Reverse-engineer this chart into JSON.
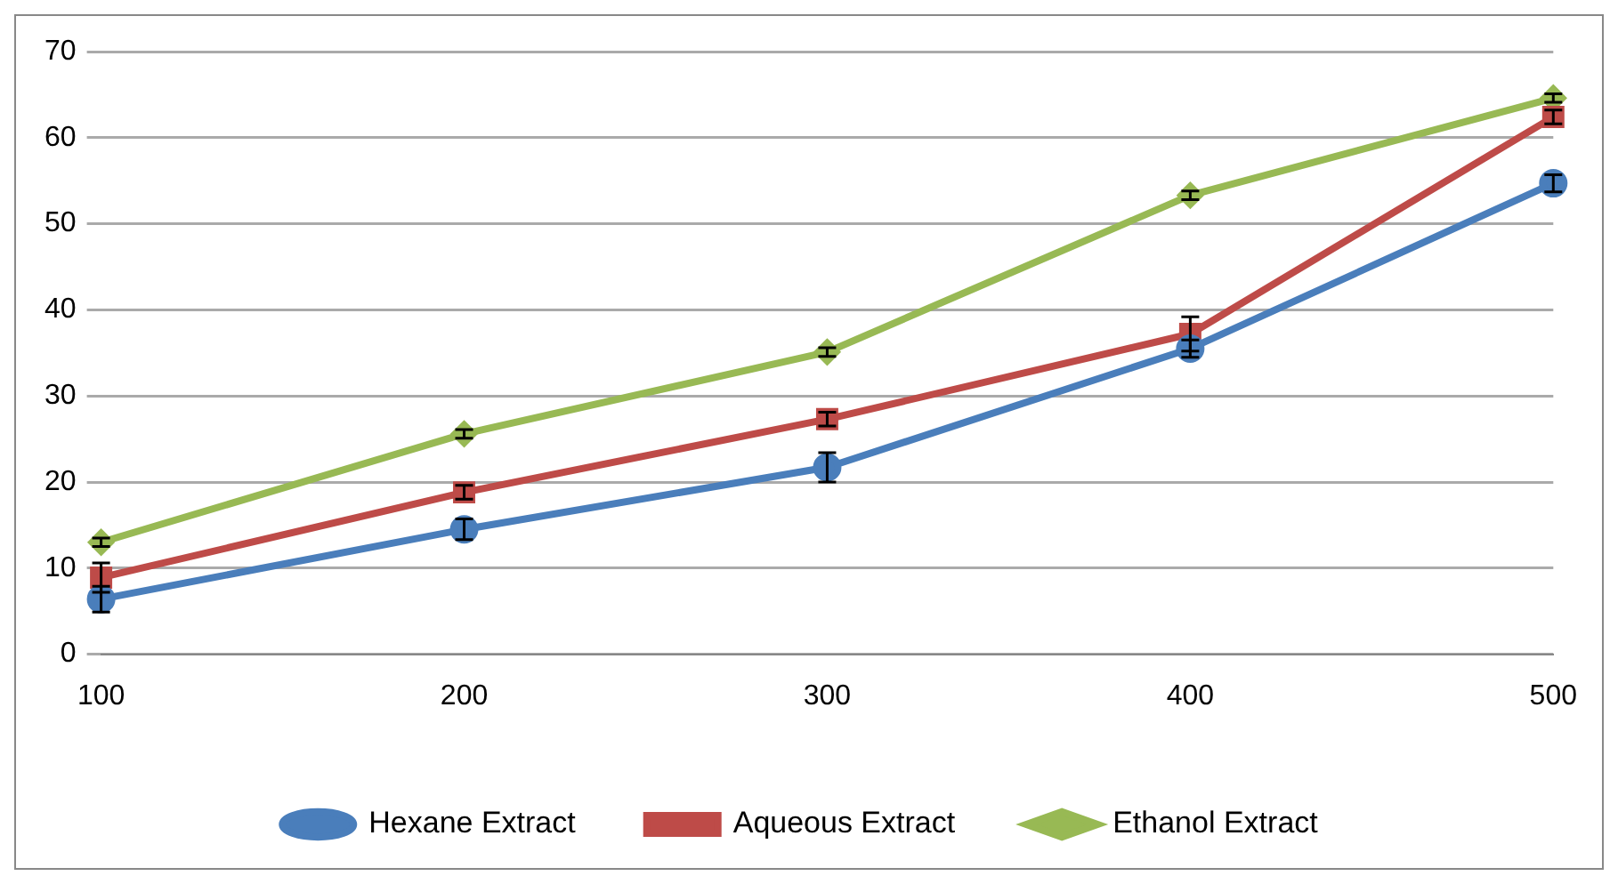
{
  "chart_data": {
    "type": "line",
    "categories": [
      "100",
      "200",
      "300",
      "400",
      "500"
    ],
    "ylim": [
      0,
      70
    ],
    "yticks": [
      0,
      10,
      20,
      30,
      40,
      50,
      60,
      70
    ],
    "grid": "y",
    "legend": "bottom",
    "series": [
      {
        "name": "Hexane Extract",
        "color": "#4a7ebb",
        "marker": "circle",
        "values": [
          6.4,
          14.5,
          21.7,
          35.5,
          54.7
        ],
        "errors": [
          1.5,
          1.2,
          1.7,
          1,
          1
        ]
      },
      {
        "name": "Aqueous Extract",
        "color": "#be4b48",
        "marker": "square",
        "values": [
          8.9,
          18.8,
          27.3,
          37.2,
          62.4
        ],
        "errors": [
          1.7,
          0.8,
          0.8,
          2,
          0.8
        ]
      },
      {
        "name": "Ethanol Extract",
        "color": "#98b954",
        "marker": "diamond",
        "values": [
          13.0,
          25.6,
          35.1,
          53.3,
          64.6
        ],
        "errors": [
          0.5,
          0.5,
          0.5,
          0.5,
          0.5
        ]
      }
    ]
  }
}
